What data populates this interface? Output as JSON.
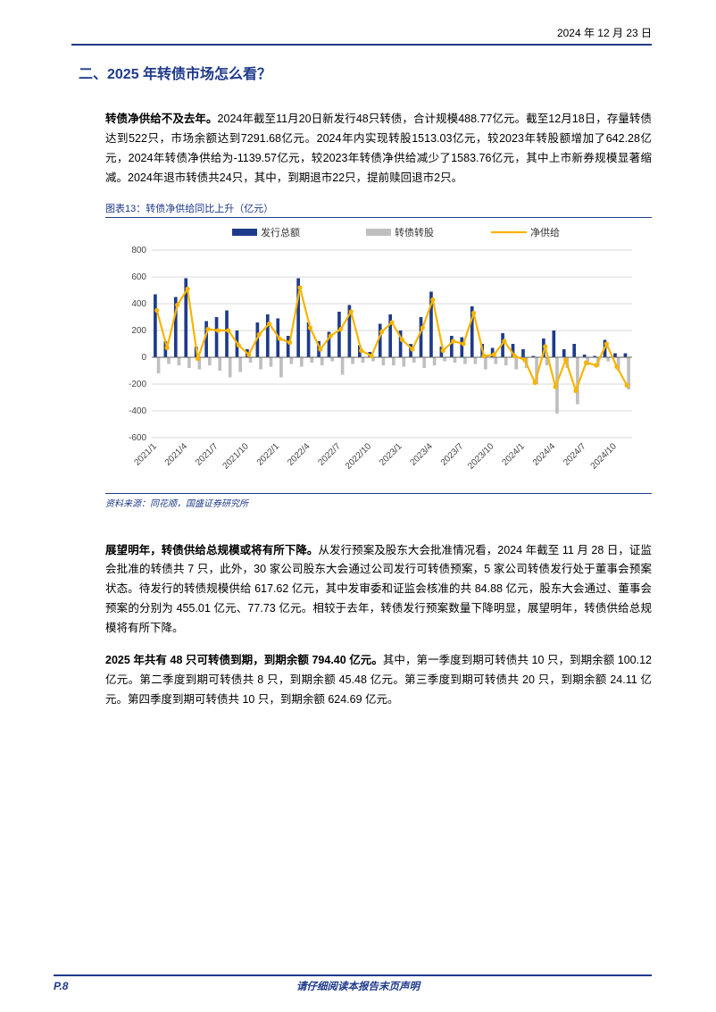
{
  "header": {
    "date": "2024 年 12 月 23 日"
  },
  "section": {
    "title": "二、2025 年转债市场怎么看？"
  },
  "paragraphs": {
    "p1_bold": "转债净供给不及去年。",
    "p1_rest": "2024年截至11月20日新发行48只转债，合计规模488.77亿元。截至12月18日，存量转债达到522只，市场余额达到7291.68亿元。2024年内实现转股1513.03亿元，较2023年转股额增加了642.28亿元，2024年转债净供给为-1139.57亿元，较2023年转债净供给减少了1583.76亿元，其中上市新券规模显著缩减。2024年退市转债共24只，其中，到期退市22只，提前赎回退市2只。",
    "p2_bold": "展望明年，转债供给总规模或将有所下降。",
    "p2_rest": "从发行预案及股东大会批准情况看，2024 年截至 11 月 28 日，证监会批准的转债共 7 只，此外，30 家公司股东大会通过公司发行可转债预案，5 家公司转债发行处于董事会预案状态。待发行的转债规模供给 617.62 亿元，其中发审委和证监会核准的共 84.88 亿元，股东大会通过、董事会预案的分别为 455.01 亿元、77.73 亿元。相较于去年，转债发行预案数量下降明显，展望明年，转债供给总规模将有所下降。",
    "p3_bold": "2025 年共有 48 只可转债到期，到期余额 794.40 亿元。",
    "p3_rest": "其中，第一季度到期可转债共 10 只，到期余额 100.12 亿元。第二季度到期可转债共 8 只，到期余额 45.48 亿元。第三季度到期可转债共 20 只，到期余额 24.11 亿元。第四季度到期可转债共 10 只，到期余额 624.69 亿元。"
  },
  "chart": {
    "title": "图表13：转债净供给同比上升（亿元）",
    "source": "资料来源：同花顺，国盛证券研究所",
    "type": "bar+line",
    "legend": {
      "issuance": "发行总额",
      "conversion": "转债转股",
      "net": "净供给"
    },
    "colors": {
      "issuance_bar": "#1e3a8a",
      "conversion_bar": "#bfbfbf",
      "net_line": "#f7b500",
      "grid": "#d9d9d9",
      "axis": "#666666",
      "background": "#ffffff",
      "title_color": "#1e3a8a"
    },
    "ylim": [
      -600,
      800
    ],
    "ytick_step": 200,
    "yticks": [
      -600,
      -400,
      -200,
      0,
      200,
      400,
      600,
      800
    ],
    "label_fontsize": 10,
    "legend_fontsize": 11,
    "line_width": 2.2,
    "marker_style": "circle",
    "marker_size": 2.6,
    "bar_width_ratio": 0.32,
    "x_labels": [
      "2021/1",
      "2021/4",
      "2021/7",
      "2021/10",
      "2022/1",
      "2022/4",
      "2022/7",
      "2022/10",
      "2023/1",
      "2023/4",
      "2023/7",
      "2023/10",
      "2024/1",
      "2024/4",
      "2024/7",
      "2024/10"
    ],
    "x_label_every": 3,
    "periods": [
      "2021/1",
      "2021/2",
      "2021/3",
      "2021/4",
      "2021/5",
      "2021/6",
      "2021/7",
      "2021/8",
      "2021/9",
      "2021/10",
      "2021/11",
      "2021/12",
      "2022/1",
      "2022/2",
      "2022/3",
      "2022/4",
      "2022/5",
      "2022/6",
      "2022/7",
      "2022/8",
      "2022/9",
      "2022/10",
      "2022/11",
      "2022/12",
      "2023/1",
      "2023/2",
      "2023/3",
      "2023/4",
      "2023/5",
      "2023/6",
      "2023/7",
      "2023/8",
      "2023/9",
      "2023/10",
      "2023/11",
      "2023/12",
      "2024/1",
      "2024/2",
      "2024/3",
      "2024/4",
      "2024/5",
      "2024/6",
      "2024/7",
      "2024/8",
      "2024/9",
      "2024/10",
      "2024/11"
    ],
    "issuance": [
      470,
      120,
      450,
      590,
      80,
      270,
      300,
      350,
      200,
      60,
      260,
      320,
      290,
      160,
      590,
      260,
      120,
      190,
      340,
      390,
      90,
      40,
      250,
      320,
      200,
      100,
      300,
      490,
      80,
      160,
      150,
      380,
      100,
      70,
      180,
      100,
      60,
      10,
      140,
      200,
      60,
      100,
      20,
      10,
      130,
      30,
      30
    ],
    "conversion": [
      -120,
      -50,
      -60,
      -80,
      -90,
      -60,
      -100,
      -150,
      -110,
      -40,
      -90,
      -70,
      -150,
      -50,
      -70,
      -40,
      -60,
      -30,
      -130,
      -50,
      -40,
      -30,
      -60,
      -60,
      -70,
      -40,
      -80,
      -60,
      -30,
      -40,
      -50,
      -50,
      -90,
      -50,
      -60,
      -90,
      -80,
      -200,
      -60,
      -420,
      -80,
      -350,
      -60,
      -70,
      -30,
      -100,
      -240
    ],
    "net": [
      350,
      70,
      390,
      510,
      -10,
      210,
      200,
      200,
      90,
      20,
      170,
      250,
      140,
      110,
      520,
      220,
      60,
      160,
      210,
      340,
      50,
      10,
      190,
      260,
      130,
      60,
      220,
      430,
      50,
      120,
      100,
      330,
      10,
      20,
      120,
      10,
      -20,
      -190,
      80,
      -220,
      -20,
      -250,
      -40,
      -60,
      100,
      -70,
      -210
    ]
  },
  "footer": {
    "page": "P.8",
    "disclaimer": "请仔细阅读本报告末页声明"
  }
}
